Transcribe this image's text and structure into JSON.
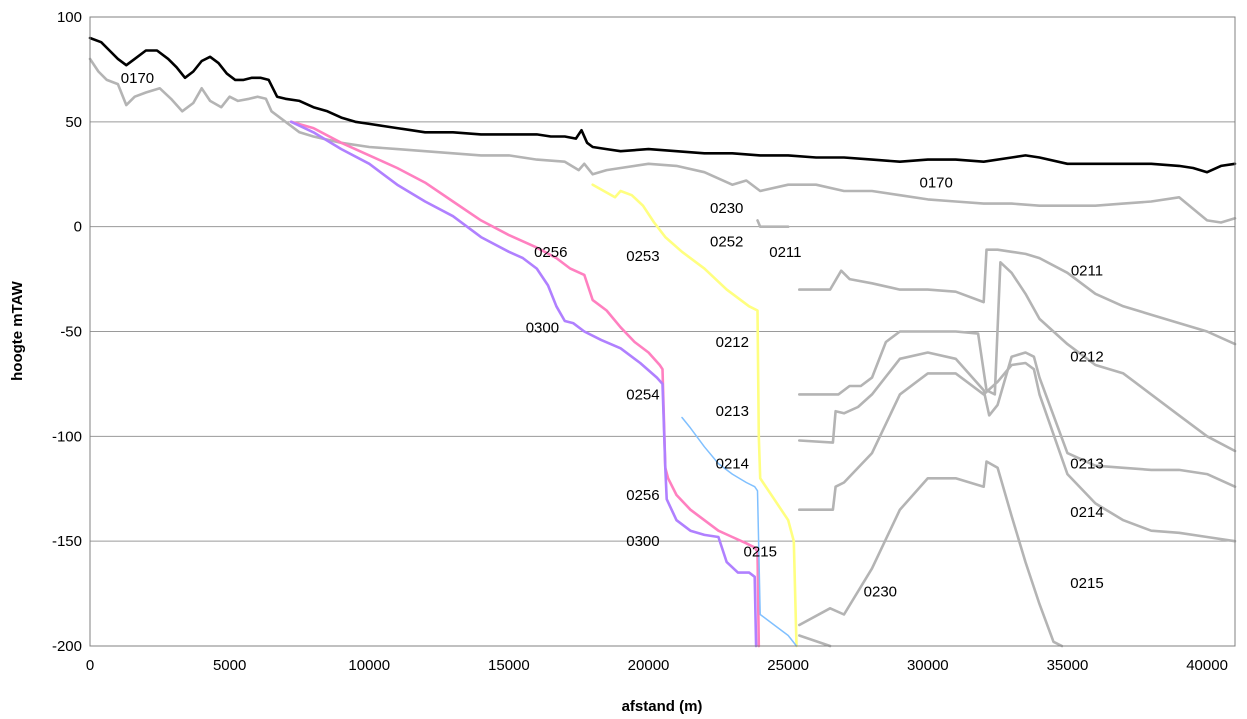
{
  "chart_data": {
    "type": "line",
    "title": "",
    "xlabel": "afstand (m)",
    "ylabel": "hoogte mTAW",
    "xlim": [
      0,
      41000
    ],
    "ylim": [
      -200,
      100
    ],
    "xticks": [
      0,
      5000,
      10000,
      15000,
      20000,
      25000,
      30000,
      35000,
      40000
    ],
    "yticks": [
      100,
      50,
      0,
      -50,
      -100,
      -150,
      -200
    ],
    "grid": "horizontal",
    "legend": "none",
    "colors": {
      "black": "#000000",
      "gray": "#b4b4b4",
      "yellow": "#ffff80",
      "pink": "#ff80c0",
      "purple": "#b080ff",
      "lightblue": "#80c0ff"
    },
    "series": [
      {
        "color": "black",
        "width": 2.6,
        "x": [
          0,
          400,
          700,
          1000,
          1300,
          1600,
          2000,
          2400,
          2800,
          3100,
          3400,
          3700,
          4000,
          4300,
          4600,
          4900,
          5200,
          5500,
          5800,
          6100,
          6400,
          6700,
          7000,
          7500,
          8000,
          8500,
          9000,
          9500,
          10000,
          10500,
          11000,
          11500,
          12000,
          12500,
          13000,
          14000,
          15000,
          16000,
          16500,
          17000,
          17400,
          17600,
          17800,
          18000,
          18500,
          19000,
          20000,
          21000,
          22000,
          23000,
          24000,
          25000,
          26000,
          27000,
          28000,
          29000,
          30000,
          31000,
          32000,
          33000,
          33500,
          34000,
          35000,
          36000,
          37000,
          38000,
          39000,
          39500,
          40000,
          40500,
          41000
        ],
        "y": [
          90,
          88,
          84,
          80,
          77,
          80,
          84,
          84,
          80,
          76,
          71,
          74,
          79,
          81,
          78,
          73,
          70,
          70,
          71,
          71,
          70,
          62,
          61,
          60,
          57,
          55,
          52,
          50,
          49,
          48,
          47,
          46,
          45,
          45,
          45,
          44,
          44,
          44,
          43,
          43,
          42,
          46,
          40,
          38,
          37,
          36,
          37,
          36,
          35,
          35,
          34,
          34,
          33,
          33,
          32,
          31,
          32,
          32,
          31,
          33,
          34,
          33,
          30,
          30,
          30,
          30,
          29,
          28,
          26,
          29,
          30
        ]
      },
      {
        "color": "gray",
        "width": 2.6,
        "x": [
          0,
          300,
          600,
          1000,
          1300,
          1600,
          2000,
          2500,
          2900,
          3300,
          3700,
          4000,
          4300,
          4700,
          5000,
          5300,
          5700,
          6000,
          6300,
          6500,
          7000,
          7500,
          8000,
          9000,
          10000,
          11000,
          12000,
          13000,
          14000,
          15000,
          16000,
          17000,
          17500,
          17700,
          18000,
          18500,
          19000,
          20000,
          21000,
          22000,
          23000,
          23500,
          24000,
          25000,
          26000,
          27000,
          28000,
          29000,
          30000,
          31000,
          32000,
          33000,
          34000,
          35000,
          36000,
          37000,
          38000,
          39000,
          40000,
          40500,
          41000
        ],
        "y": [
          80,
          74,
          70,
          68,
          58,
          62,
          64,
          66,
          61,
          55,
          59,
          66,
          60,
          57,
          62,
          60,
          61,
          62,
          61,
          55,
          50,
          45,
          43,
          40,
          38,
          37,
          36,
          35,
          34,
          34,
          32,
          31,
          27,
          30,
          25,
          27,
          28,
          30,
          29,
          26,
          20,
          22,
          17,
          20,
          20,
          17,
          17,
          15,
          13,
          12,
          11,
          11,
          10,
          10,
          10,
          11,
          12,
          14,
          3,
          2,
          4
        ]
      },
      {
        "color": "gray",
        "width": 2.6,
        "x": [
          23900,
          24000,
          24300,
          25000
        ],
        "y": [
          3,
          0,
          0,
          0
        ]
      },
      {
        "color": "gray",
        "width": 2.6,
        "x": [
          25400,
          26500,
          26900,
          27200,
          28000,
          29000,
          30000,
          31000,
          32000,
          32100,
          32500,
          33000,
          33500,
          34000,
          35000,
          36000,
          37000,
          38000,
          39000,
          40000,
          41000
        ],
        "y": [
          -30,
          -30,
          -21,
          -25,
          -27,
          -30,
          -30,
          -31,
          -36,
          -11,
          -11,
          -12,
          -13,
          -15,
          -22,
          -32,
          -38,
          -42,
          -46,
          -50,
          -56
        ]
      },
      {
        "color": "gray",
        "width": 2.6,
        "x": [
          25400,
          26800,
          27200,
          27600,
          28000,
          28500,
          29000,
          30000,
          31000,
          31800,
          32100,
          32400,
          32600,
          33000,
          33500,
          34000,
          35000,
          36000,
          37000,
          38000,
          39000,
          40000,
          41000
        ],
        "y": [
          -80,
          -80,
          -76,
          -76,
          -72,
          -55,
          -50,
          -50,
          -50,
          -51,
          -78,
          -80,
          -17,
          -22,
          -32,
          -44,
          -56,
          -66,
          -70,
          -80,
          -90,
          -100,
          -107
        ]
      },
      {
        "color": "gray",
        "width": 2.6,
        "x": [
          25400,
          26600,
          26700,
          27000,
          27500,
          28000,
          29000,
          30000,
          31000,
          32000,
          32200,
          32500,
          33000,
          33500,
          33800,
          34000,
          35000,
          36000,
          37000,
          38000,
          39000,
          40000,
          41000
        ],
        "y": [
          -102,
          -103,
          -88,
          -89,
          -86,
          -80,
          -63,
          -60,
          -63,
          -78,
          -90,
          -85,
          -62,
          -60,
          -62,
          -72,
          -108,
          -114,
          -115,
          -116,
          -116,
          -118,
          -124
        ]
      },
      {
        "color": "gray",
        "width": 2.6,
        "x": [
          25400,
          26600,
          26700,
          27000,
          28000,
          29000,
          30000,
          31000,
          32000,
          32500,
          33000,
          33500,
          33800,
          34000,
          35000,
          36000,
          37000,
          38000,
          39000,
          40000,
          41000
        ],
        "y": [
          -135,
          -135,
          -124,
          -122,
          -108,
          -80,
          -70,
          -70,
          -80,
          -74,
          -66,
          -65,
          -68,
          -80,
          -118,
          -132,
          -140,
          -145,
          -146,
          -148,
          -150
        ]
      },
      {
        "color": "gray",
        "width": 2.6,
        "x": [
          25400,
          26500,
          27000,
          28000,
          29000,
          30000,
          31000,
          32000,
          32100,
          32500,
          33000,
          33500,
          34000,
          34500,
          34800
        ],
        "y": [
          -190,
          -182,
          -185,
          -163,
          -135,
          -120,
          -120,
          -124,
          -112,
          -115,
          -138,
          -160,
          -180,
          -198,
          -200
        ]
      },
      {
        "color": "gray",
        "width": 2.6,
        "x": [
          25400,
          26500
        ],
        "y": [
          -195,
          -200
        ]
      },
      {
        "color": "yellow",
        "width": 2.6,
        "x": [
          18000,
          18800,
          19000,
          19400,
          19800,
          20200,
          20600,
          21200,
          22000,
          22800,
          23600,
          23900,
          23950,
          24000,
          24500,
          25000,
          25200,
          25300
        ],
        "y": [
          20,
          14,
          17,
          15,
          10,
          2,
          -5,
          -12,
          -20,
          -30,
          -38,
          -40,
          -100,
          -120,
          -130,
          -140,
          -150,
          -200
        ]
      },
      {
        "color": "pink",
        "width": 2.6,
        "x": [
          7200,
          8000,
          9000,
          10000,
          11000,
          12000,
          13000,
          14000,
          15000,
          16000,
          16700,
          17200,
          17700,
          18000,
          18500,
          19000,
          19500,
          20000,
          20400,
          20500,
          20600,
          20700,
          21000,
          21500,
          22000,
          22500,
          23000,
          23500,
          23800,
          23900,
          23950
        ],
        "y": [
          50,
          47,
          40,
          34,
          28,
          21,
          12,
          3,
          -4,
          -10,
          -15,
          -20,
          -23,
          -35,
          -40,
          -48,
          -55,
          -60,
          -66,
          -68,
          -115,
          -120,
          -128,
          -135,
          -140,
          -145,
          -148,
          -151,
          -153,
          -155,
          -200
        ]
      },
      {
        "color": "purple",
        "width": 2.6,
        "x": [
          7200,
          8000,
          9000,
          10000,
          11000,
          12000,
          13000,
          14000,
          15000,
          15500,
          16000,
          16400,
          16700,
          17000,
          17300,
          17700,
          18300,
          19000,
          19700,
          20300,
          20500,
          20600,
          20650,
          21000,
          21500,
          22000,
          22500,
          22800,
          23200,
          23600,
          23800,
          23850
        ],
        "y": [
          50,
          45,
          37,
          30,
          20,
          12,
          5,
          -5,
          -12,
          -15,
          -20,
          -28,
          -38,
          -45,
          -46,
          -50,
          -54,
          -58,
          -65,
          -72,
          -75,
          -115,
          -130,
          -140,
          -145,
          -147,
          -148,
          -160,
          -165,
          -165,
          -167,
          -200
        ]
      },
      {
        "color": "lightblue",
        "width": 1.5,
        "x": [
          21200,
          21500,
          22000,
          22500,
          23000,
          23500,
          23800,
          23900,
          24000,
          24500,
          25000,
          25300
        ],
        "y": [
          -91,
          -96,
          -105,
          -113,
          -118,
          -122,
          -124,
          -126,
          -185,
          -190,
          -195,
          -200
        ]
      }
    ],
    "annotations": [
      {
        "text": "0170",
        "x": 1700,
        "y": 71
      },
      {
        "text": "0170",
        "x": 30300,
        "y": 21
      },
      {
        "text": "0230",
        "x": 22800,
        "y": 9
      },
      {
        "text": "0252",
        "x": 22800,
        "y": -7
      },
      {
        "text": "0211",
        "x": 24900,
        "y": -12
      },
      {
        "text": "0253",
        "x": 19800,
        "y": -14
      },
      {
        "text": "0256",
        "x": 16500,
        "y": -12
      },
      {
        "text": "0211",
        "x": 35700,
        "y": -21
      },
      {
        "text": "0300",
        "x": 16200,
        "y": -48
      },
      {
        "text": "0212",
        "x": 23000,
        "y": -55
      },
      {
        "text": "0212",
        "x": 35700,
        "y": -62
      },
      {
        "text": "0254",
        "x": 19800,
        "y": -80
      },
      {
        "text": "0213",
        "x": 23000,
        "y": -88
      },
      {
        "text": "0214",
        "x": 23000,
        "y": -113
      },
      {
        "text": "0213",
        "x": 35700,
        "y": -113
      },
      {
        "text": "0256",
        "x": 19800,
        "y": -128
      },
      {
        "text": "0214",
        "x": 35700,
        "y": -136
      },
      {
        "text": "0300",
        "x": 19800,
        "y": -150
      },
      {
        "text": "0215",
        "x": 24000,
        "y": -155
      },
      {
        "text": "0215",
        "x": 35700,
        "y": -170
      },
      {
        "text": "0230",
        "x": 28300,
        "y": -174
      }
    ]
  }
}
